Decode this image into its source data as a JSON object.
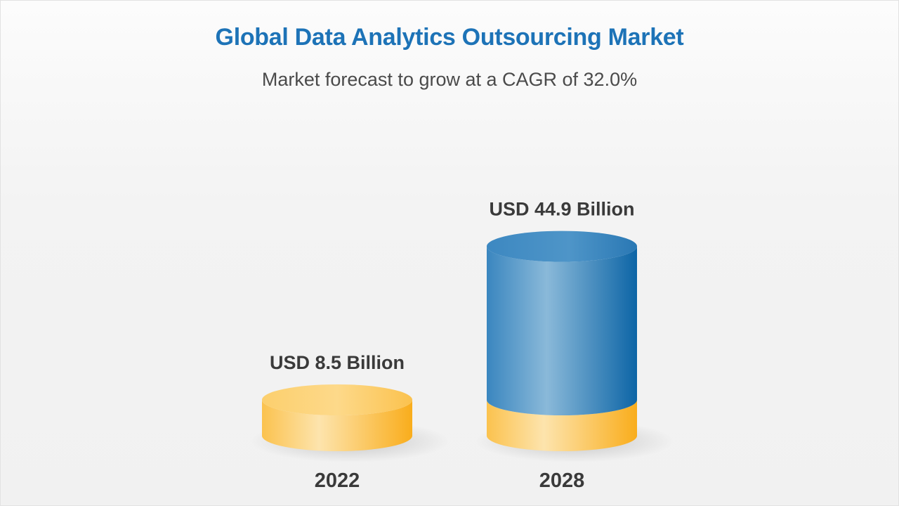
{
  "chart_data": {
    "type": "bar",
    "title": "Global Data Analytics Outsourcing Market",
    "subtitle": "Market forecast to grow at a CAGR of 32.0%",
    "categories": [
      "2022",
      "2028"
    ],
    "values": [
      8.5,
      44.9
    ],
    "value_labels": [
      "USD 8.5 Billion",
      "USD 44.9 Billion"
    ],
    "unit": "USD Billion",
    "grid": false,
    "legend": "none",
    "colors": {
      "base": "#fbb730",
      "base_light": "#fde3ab",
      "growth": "#2b7bb5",
      "growth_light": "#8ab9d9",
      "title": "#1d73b7"
    }
  }
}
